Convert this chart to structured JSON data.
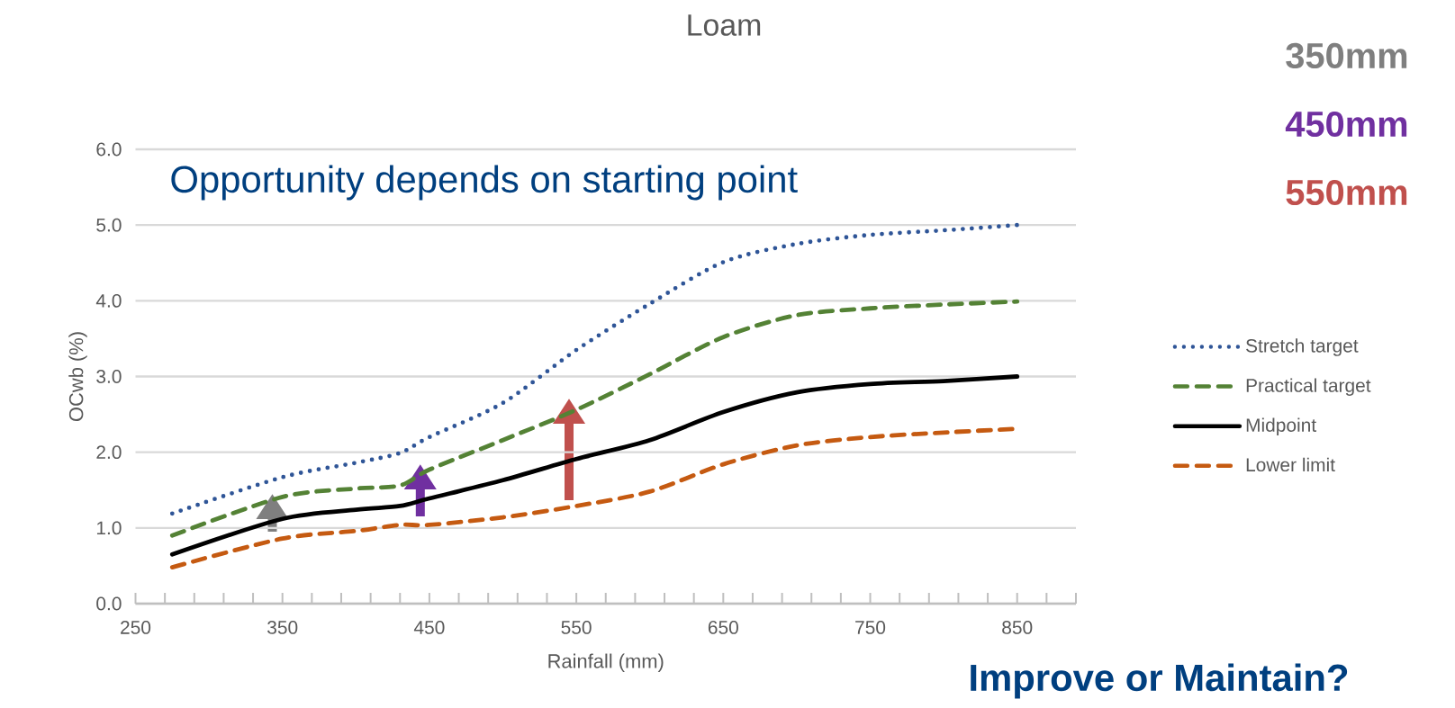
{
  "chart_data": {
    "type": "line",
    "title": "Loam",
    "xlabel": "Rainfall (mm)",
    "ylabel": "OCwb (%)",
    "x": [
      275,
      350,
      400,
      430,
      450,
      500,
      550,
      600,
      650,
      700,
      750,
      800,
      850
    ],
    "series": [
      {
        "name": "Stretch target",
        "color": "#2f5597",
        "line_style": "dotted",
        "values": [
          1.19,
          1.67,
          1.86,
          1.99,
          2.2,
          2.65,
          3.35,
          3.96,
          4.51,
          4.75,
          4.87,
          4.93,
          5.0
        ]
      },
      {
        "name": "Practical target",
        "color": "#548235",
        "line_style": "dashed",
        "values": [
          0.9,
          1.41,
          1.52,
          1.56,
          1.77,
          2.16,
          2.56,
          3.03,
          3.52,
          3.81,
          3.9,
          3.95,
          3.99
        ]
      },
      {
        "name": "Midpoint",
        "color": "#000000",
        "line_style": "solid",
        "values": [
          0.65,
          1.12,
          1.24,
          1.29,
          1.39,
          1.63,
          1.91,
          2.16,
          2.53,
          2.79,
          2.9,
          2.94,
          3.0
        ]
      },
      {
        "name": "Lower limit",
        "color": "#c55a11",
        "line_style": "dashed",
        "values": [
          0.48,
          0.86,
          0.96,
          1.04,
          1.04,
          1.14,
          1.29,
          1.48,
          1.84,
          2.09,
          2.2,
          2.26,
          2.31
        ]
      }
    ],
    "annotations": [
      "Opportunity depends on starting point",
      "350mm",
      "450mm",
      "550mm",
      "Improve or Maintain?"
    ],
    "xlim": [
      250,
      890
    ],
    "ylim": [
      0,
      6
    ],
    "xticks": [
      {
        "value": 250,
        "label": "250"
      },
      {
        "value": 270,
        "label": null
      },
      {
        "value": 290,
        "label": null
      },
      {
        "value": 310,
        "label": null
      },
      {
        "value": 330,
        "label": null
      },
      {
        "value": 350,
        "label": "350"
      },
      {
        "value": 370,
        "label": null
      },
      {
        "value": 390,
        "label": null
      },
      {
        "value": 410,
        "label": null
      },
      {
        "value": 430,
        "label": null
      },
      {
        "value": 450,
        "label": "450"
      },
      {
        "value": 470,
        "label": null
      },
      {
        "value": 490,
        "label": null
      },
      {
        "value": 510,
        "label": null
      },
      {
        "value": 530,
        "label": null
      },
      {
        "value": 550,
        "label": "550"
      },
      {
        "value": 570,
        "label": null
      },
      {
        "value": 590,
        "label": null
      },
      {
        "value": 610,
        "label": null
      },
      {
        "value": 630,
        "label": null
      },
      {
        "value": 650,
        "label": "650"
      },
      {
        "value": 670,
        "label": null
      },
      {
        "value": 690,
        "label": null
      },
      {
        "value": 710,
        "label": null
      },
      {
        "value": 730,
        "label": null
      },
      {
        "value": 750,
        "label": "750"
      },
      {
        "value": 770,
        "label": null
      },
      {
        "value": 790,
        "label": null
      },
      {
        "value": 810,
        "label": null
      },
      {
        "value": 830,
        "label": null
      },
      {
        "value": 850,
        "label": "850"
      },
      {
        "value": 870,
        "label": null
      },
      {
        "value": 890,
        "label": null
      }
    ],
    "yticks": [
      {
        "value": 0,
        "label": "0.0"
      },
      {
        "value": 1,
        "label": "1.0"
      },
      {
        "value": 2,
        "label": "2.0"
      },
      {
        "value": 3,
        "label": "3.0"
      },
      {
        "value": 4,
        "label": "4.0"
      },
      {
        "value": 5,
        "label": "5.0"
      },
      {
        "value": 6,
        "label": "6.0"
      }
    ],
    "grid": "y",
    "legend": "right"
  }
}
